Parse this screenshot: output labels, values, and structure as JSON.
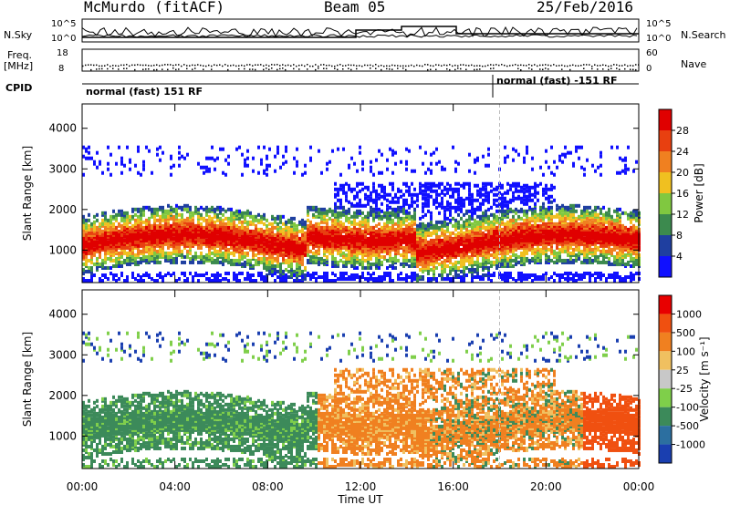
{
  "header": {
    "station": "McMurdo (fitACF)",
    "beam": "Beam 05",
    "date": "25/Feb/2016"
  },
  "top_strip": {
    "left_label": "N.Sky",
    "right_label": "N.Search",
    "left_ticks": [
      "10^5",
      "10^0"
    ],
    "right_ticks": [
      "10^5",
      "10^0"
    ]
  },
  "freq_strip": {
    "left_label": "Freq.",
    "left_unit": "[MHz]",
    "left_ticks": [
      "18",
      "8"
    ],
    "right_label": "Nave",
    "right_ticks": [
      "60",
      "0"
    ]
  },
  "cpid_strip": {
    "label": "CPID",
    "segments": [
      {
        "text": "normal (fast) 151 RF",
        "start": "00:00"
      },
      {
        "text": "normal (fast) -151 RF",
        "start": "18:00"
      }
    ]
  },
  "chart_data": [
    {
      "type": "heatmap",
      "panel": "power",
      "ylabel": "Slant Range [km]",
      "y_ticks": [
        1000,
        2000,
        3000,
        4000
      ],
      "ylim": [
        200,
        4600
      ],
      "x_ticks": [
        "00:00",
        "04:00",
        "08:00",
        "12:00",
        "16:00",
        "20:00",
        "00:00"
      ],
      "colorbar": {
        "label": "Power [dB]",
        "ticks": [
          4,
          8,
          12,
          16,
          20,
          24,
          28
        ],
        "colors": [
          "#1010ff",
          "#1f3fa0",
          "#3c8a4e",
          "#80c840",
          "#f0c020",
          "#f08020",
          "#e84010",
          "#e00000"
        ]
      }
    },
    {
      "type": "heatmap",
      "panel": "velocity",
      "ylabel": "Slant Range [km]",
      "y_ticks": [
        1000,
        2000,
        3000,
        4000
      ],
      "ylim": [
        200,
        4600
      ],
      "x_ticks": [
        "00:00",
        "04:00",
        "08:00",
        "12:00",
        "16:00",
        "20:00",
        "00:00"
      ],
      "xlabel": "Time UT",
      "colorbar": {
        "label": "Velocity [m s⁻¹]",
        "ticks": [
          "1000",
          "500",
          "100",
          "25",
          "-25",
          "-100",
          "-500",
          "-1000"
        ],
        "colors": [
          "#1a3fb0",
          "#2c6fa0",
          "#3c8a5a",
          "#7fcf4a",
          "#c8c8c8",
          "#f0c060",
          "#f08020",
          "#f05010",
          "#e80000"
        ]
      }
    }
  ]
}
